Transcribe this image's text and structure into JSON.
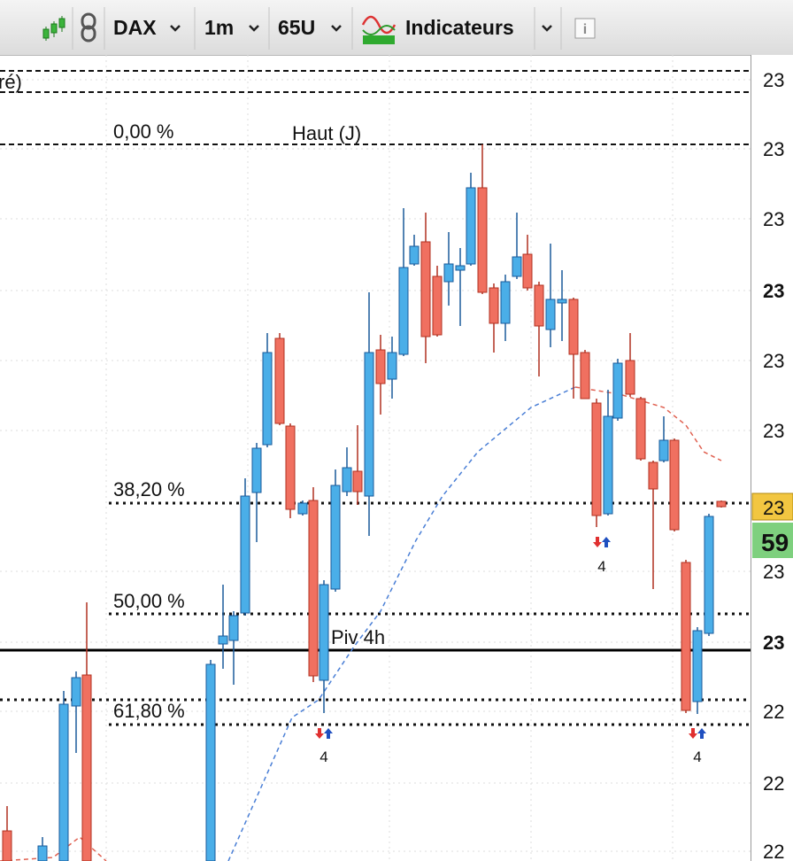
{
  "toolbar": {
    "symbol": "DAX",
    "interval": "1m",
    "units": "65U",
    "indicators": "Indicateurs"
  },
  "levels": {
    "prior": "ré)",
    "fib_0": "0,00 %",
    "high_day": "Haut (J)",
    "fib_382": "38,20 %",
    "fib_50": "50,00 %",
    "pivot": "Piv 4h",
    "fib_618": "61,80 %"
  },
  "signals": [
    "4",
    "4",
    "4"
  ],
  "price_axis": {
    "labels": [
      "23",
      "23",
      "23",
      "23",
      "23",
      "23",
      "23",
      "23",
      "22",
      "22",
      "22"
    ]
  },
  "badges": {
    "last": "23",
    "change": "59"
  }
}
